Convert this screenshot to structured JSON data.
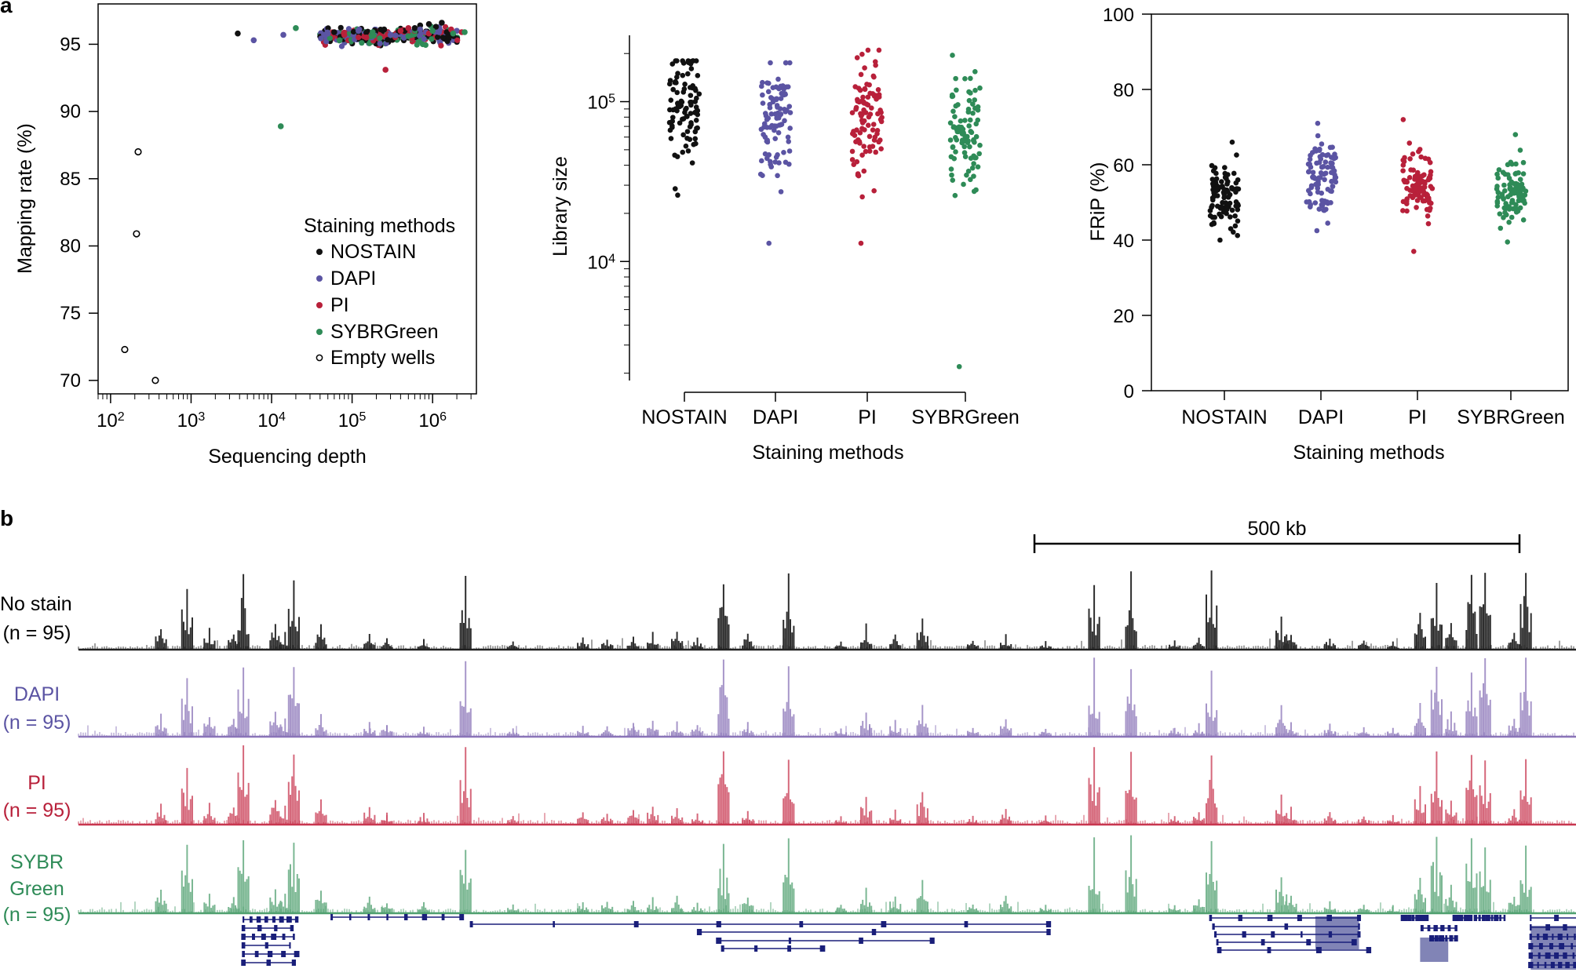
{
  "panel_labels": {
    "a": "a",
    "b": "b"
  },
  "colors": {
    "NOSTAIN": "#111111",
    "DAPI": "#5b54a3",
    "PI": "#b8203a",
    "SYBRGreen": "#2e8b57",
    "gene": "#1a1f7a",
    "axis": "#000000"
  },
  "chart_data": [
    {
      "type": "scatter",
      "title": "",
      "xlabel": "Sequencing depth",
      "ylabel": "Mapping rate (%)",
      "xscale": "log",
      "xlim": [
        70,
        3500000
      ],
      "ylim": [
        69,
        98
      ],
      "xticks": [
        {
          "value": 100,
          "base": "10",
          "exp": "2"
        },
        {
          "value": 1000,
          "base": "10",
          "exp": "3"
        },
        {
          "value": 10000,
          "base": "10",
          "exp": "4"
        },
        {
          "value": 100000,
          "base": "10",
          "exp": "5"
        },
        {
          "value": 1000000,
          "base": "10",
          "exp": "6"
        }
      ],
      "yticks": [
        70,
        75,
        80,
        85,
        90,
        95
      ],
      "legend_title": "Staining methods",
      "legend_position": "right",
      "series": [
        {
          "name": "NOSTAIN",
          "values": [
            [
              3800,
              95.8
            ],
            [
              60000,
              95.9
            ],
            [
              250000,
              96.1
            ],
            [
              600000,
              96.2
            ],
            [
              900000,
              96.5
            ],
            [
              1100000,
              96.3
            ],
            [
              1500000,
              95.9
            ],
            [
              700000,
              96.4
            ],
            [
              450000,
              96.0
            ],
            [
              1300000,
              96.6
            ]
          ]
        },
        {
          "name": "DAPI",
          "values": [
            [
              6000,
              95.3
            ],
            [
              14000,
              95.7
            ],
            [
              50000,
              95.8
            ],
            [
              120000,
              96.0
            ],
            [
              300000,
              95.7
            ],
            [
              700000,
              96.1
            ],
            [
              1200000,
              95.9
            ],
            [
              2000000,
              96.0
            ]
          ]
        },
        {
          "name": "PI",
          "values": [
            [
              260000,
              93.1
            ],
            [
              80000,
              95.7
            ],
            [
              150000,
              95.5
            ],
            [
              400000,
              96.0
            ],
            [
              900000,
              95.8
            ],
            [
              1700000,
              96.1
            ],
            [
              2300000,
              95.9
            ],
            [
              500000,
              96.2
            ]
          ]
        },
        {
          "name": "SYBRGreen",
          "values": [
            [
              13000,
              88.9
            ],
            [
              20000,
              96.2
            ],
            [
              70000,
              95.3
            ],
            [
              180000,
              95.9
            ],
            [
              500000,
              95.6
            ],
            [
              1000000,
              96.0
            ],
            [
              1800000,
              95.8
            ],
            [
              2500000,
              95.9
            ]
          ]
        },
        {
          "name": "Empty wells",
          "values": [
            [
              150,
              72.3
            ],
            [
              210,
              80.9
            ],
            [
              220,
              87.0
            ],
            [
              360,
              70.0
            ]
          ]
        }
      ]
    },
    {
      "type": "scatter",
      "title": "",
      "xlabel": "Staining methods",
      "ylabel": "Library size",
      "yscale": "log",
      "ylim": [
        1800,
        260000
      ],
      "categories": [
        "NOSTAIN",
        "DAPI",
        "PI",
        "SYBRGreen"
      ],
      "yticks": [
        {
          "value": 10000,
          "base": "10",
          "exp": "4"
        },
        {
          "value": 100000,
          "base": "10",
          "exp": "5"
        }
      ],
      "series": [
        {
          "name": "NOSTAIN",
          "min": 26000,
          "max": 180000,
          "center": 100000,
          "n": 95
        },
        {
          "name": "DAPI",
          "min": 13000,
          "max": 175000,
          "center": 80000,
          "n": 95
        },
        {
          "name": "PI",
          "min": 13000,
          "max": 210000,
          "center": 80000,
          "n": 95
        },
        {
          "name": "SYBRGreen",
          "min": 2200,
          "max": 195000,
          "center": 65000,
          "n": 95
        }
      ]
    },
    {
      "type": "scatter",
      "title": "",
      "xlabel": "Staining methods",
      "ylabel": "FRiP (%)",
      "ylim": [
        0,
        100
      ],
      "categories": [
        "NOSTAIN",
        "DAPI",
        "PI",
        "SYBRGreen"
      ],
      "yticks": [
        0,
        20,
        40,
        60,
        80,
        100
      ],
      "series": [
        {
          "name": "NOSTAIN",
          "min": 40,
          "max": 66,
          "center": 52,
          "n": 95
        },
        {
          "name": "DAPI",
          "min": 42.5,
          "max": 71,
          "center": 56,
          "n": 95
        },
        {
          "name": "PI",
          "min": 37,
          "max": 72,
          "center": 54,
          "n": 95
        },
        {
          "name": "SYBRGreen",
          "min": 39.5,
          "max": 68,
          "center": 52,
          "n": 95
        }
      ]
    },
    {
      "type": "area",
      "title": "",
      "scale_bar_label": "500 kb",
      "scale_bar_kb": 500,
      "region_kb": 1550,
      "peaks_kb": [
        {
          "pos": 85,
          "height": 0.3
        },
        {
          "pos": 112,
          "height": 0.85
        },
        {
          "pos": 135,
          "height": 0.28
        },
        {
          "pos": 160,
          "height": 0.22
        },
        {
          "pos": 170,
          "height": 1.0
        },
        {
          "pos": 203,
          "height": 0.35
        },
        {
          "pos": 213,
          "height": 0.25
        },
        {
          "pos": 222,
          "height": 1.0
        },
        {
          "pos": 250,
          "height": 0.32
        },
        {
          "pos": 300,
          "height": 0.22
        },
        {
          "pos": 318,
          "height": 0.15
        },
        {
          "pos": 356,
          "height": 0.15
        },
        {
          "pos": 399,
          "height": 0.97
        },
        {
          "pos": 448,
          "height": 0.12
        },
        {
          "pos": 520,
          "height": 0.16
        },
        {
          "pos": 545,
          "height": 0.14
        },
        {
          "pos": 572,
          "height": 0.18
        },
        {
          "pos": 592,
          "height": 0.22
        },
        {
          "pos": 617,
          "height": 0.22
        },
        {
          "pos": 638,
          "height": 0.16
        },
        {
          "pos": 665,
          "height": 0.97
        },
        {
          "pos": 690,
          "height": 0.2
        },
        {
          "pos": 732,
          "height": 0.97
        },
        {
          "pos": 786,
          "height": 0.12
        },
        {
          "pos": 812,
          "height": 0.35
        },
        {
          "pos": 842,
          "height": 0.22
        },
        {
          "pos": 870,
          "height": 0.45
        },
        {
          "pos": 922,
          "height": 0.12
        },
        {
          "pos": 956,
          "height": 0.22
        },
        {
          "pos": 997,
          "height": 0.12
        },
        {
          "pos": 1047,
          "height": 0.98
        },
        {
          "pos": 1085,
          "height": 0.98
        },
        {
          "pos": 1130,
          "height": 0.12
        },
        {
          "pos": 1155,
          "height": 0.18
        },
        {
          "pos": 1168,
          "height": 0.98
        },
        {
          "pos": 1240,
          "height": 0.45
        },
        {
          "pos": 1250,
          "height": 0.22
        },
        {
          "pos": 1290,
          "height": 0.16
        },
        {
          "pos": 1325,
          "height": 0.12
        },
        {
          "pos": 1355,
          "height": 0.12
        },
        {
          "pos": 1383,
          "height": 0.48
        },
        {
          "pos": 1400,
          "height": 0.98
        },
        {
          "pos": 1415,
          "height": 0.35
        },
        {
          "pos": 1436,
          "height": 0.98
        },
        {
          "pos": 1450,
          "height": 0.98
        },
        {
          "pos": 1480,
          "height": 0.22
        },
        {
          "pos": 1492,
          "height": 0.98
        }
      ],
      "series": [
        {
          "name": "NOSTAIN",
          "label": "No stain",
          "n_label": "(n = 95)"
        },
        {
          "name": "DAPI",
          "label": "DAPI",
          "n_label": "(n = 95)"
        },
        {
          "name": "PI",
          "label": "PI",
          "n_label": "(n = 95)"
        },
        {
          "name": "SYBRGreen",
          "label": "SYBR Green",
          "n_label": "(n = 95)"
        }
      ]
    }
  ]
}
